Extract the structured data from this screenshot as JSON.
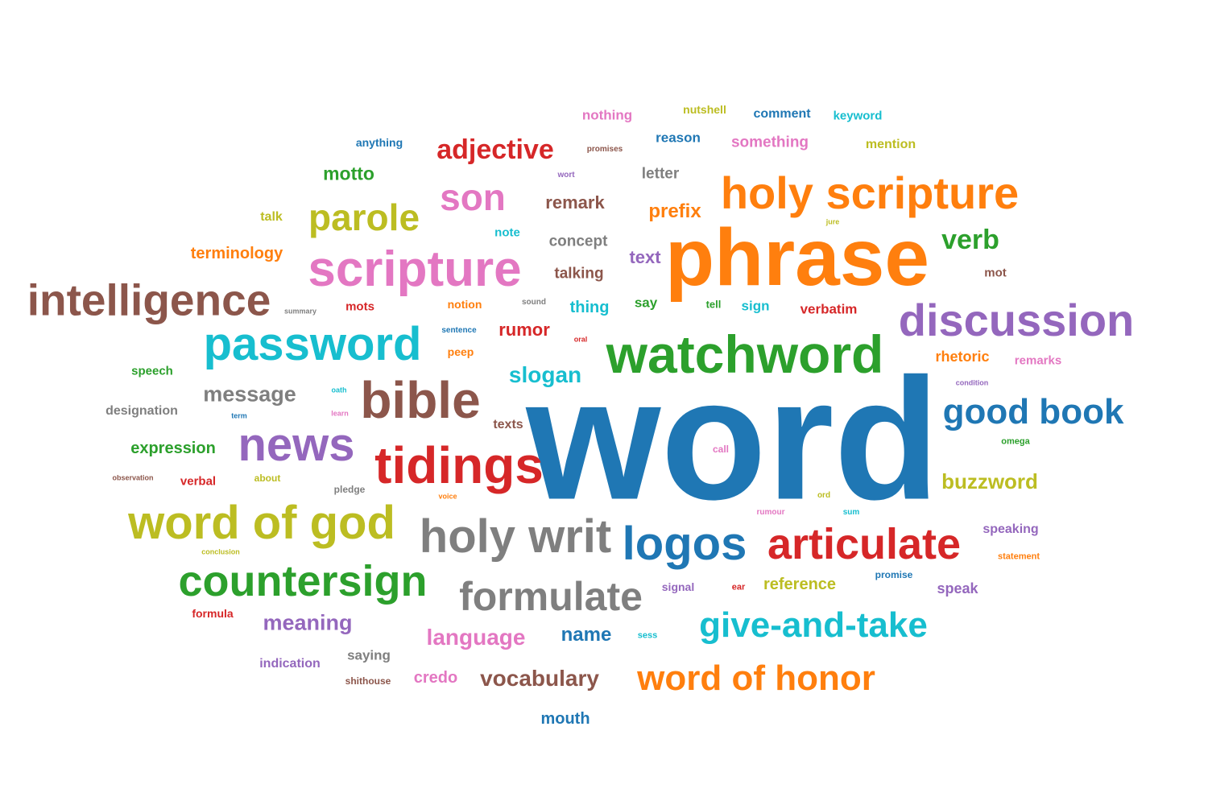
{
  "palette": {
    "blue": "#1f77b4",
    "orange": "#ff7f0e",
    "green": "#2ca02c",
    "red": "#d62728",
    "purple": "#9467bd",
    "brown": "#8c564b",
    "pink": "#e377c2",
    "gray": "#7f7f7f",
    "olive": "#bcbd22",
    "cyan": "#17becf"
  },
  "words": [
    {
      "text": "word",
      "color": "blue"
    },
    {
      "text": "phrase",
      "color": "orange"
    },
    {
      "text": "watchword",
      "color": "green"
    },
    {
      "text": "holy scripture",
      "color": "orange"
    },
    {
      "text": "scripture",
      "color": "pink"
    },
    {
      "text": "discussion",
      "color": "purple"
    },
    {
      "text": "intelligence",
      "color": "brown"
    },
    {
      "text": "password",
      "color": "cyan"
    },
    {
      "text": "bible",
      "color": "brown"
    },
    {
      "text": "tidings",
      "color": "red"
    },
    {
      "text": "news",
      "color": "purple"
    },
    {
      "text": "holy writ",
      "color": "gray"
    },
    {
      "text": "word of god",
      "color": "olive"
    },
    {
      "text": "articulate",
      "color": "red"
    },
    {
      "text": "logos",
      "color": "blue"
    },
    {
      "text": "countersign",
      "color": "green"
    },
    {
      "text": "formulate",
      "color": "gray"
    },
    {
      "text": "good book",
      "color": "blue"
    },
    {
      "text": "give-and-take",
      "color": "cyan"
    },
    {
      "text": "word of honor",
      "color": "orange"
    },
    {
      "text": "son",
      "color": "pink"
    },
    {
      "text": "parole",
      "color": "olive"
    },
    {
      "text": "adjective",
      "color": "red"
    },
    {
      "text": "verb",
      "color": "green"
    },
    {
      "text": "slogan",
      "color": "cyan"
    },
    {
      "text": "message",
      "color": "gray"
    },
    {
      "text": "buzzword",
      "color": "olive"
    },
    {
      "text": "vocabulary",
      "color": "brown"
    },
    {
      "text": "language",
      "color": "pink"
    },
    {
      "text": "meaning",
      "color": "purple"
    },
    {
      "text": "motto",
      "color": "green"
    },
    {
      "text": "remark",
      "color": "brown"
    },
    {
      "text": "prefix",
      "color": "orange"
    },
    {
      "text": "name",
      "color": "blue"
    },
    {
      "text": "text",
      "color": "purple"
    },
    {
      "text": "rumor",
      "color": "red"
    },
    {
      "text": "terminology",
      "color": "orange"
    },
    {
      "text": "expression",
      "color": "green"
    },
    {
      "text": "concept",
      "color": "gray"
    },
    {
      "text": "talking",
      "color": "brown"
    },
    {
      "text": "thing",
      "color": "cyan"
    },
    {
      "text": "letter",
      "color": "gray"
    },
    {
      "text": "reference",
      "color": "olive"
    },
    {
      "text": "rhetoric",
      "color": "orange"
    },
    {
      "text": "something",
      "color": "pink"
    },
    {
      "text": "credo",
      "color": "pink"
    },
    {
      "text": "mouth",
      "color": "blue"
    },
    {
      "text": "designation",
      "color": "gray"
    },
    {
      "text": "speaking",
      "color": "purple"
    },
    {
      "text": "indication",
      "color": "purple"
    },
    {
      "text": "speak",
      "color": "purple"
    },
    {
      "text": "saying",
      "color": "gray"
    },
    {
      "text": "verbatim",
      "color": "red"
    },
    {
      "text": "nothing",
      "color": "pink"
    },
    {
      "text": "remarks",
      "color": "pink"
    },
    {
      "text": "anything",
      "color": "blue"
    },
    {
      "text": "comment",
      "color": "blue"
    },
    {
      "text": "keyword",
      "color": "cyan"
    },
    {
      "text": "mention",
      "color": "olive"
    },
    {
      "text": "reason",
      "color": "blue"
    },
    {
      "text": "nutshell",
      "color": "olive"
    },
    {
      "text": "speech",
      "color": "green"
    },
    {
      "text": "talk",
      "color": "olive"
    },
    {
      "text": "note",
      "color": "cyan"
    },
    {
      "text": "texts",
      "color": "brown"
    },
    {
      "text": "sign",
      "color": "cyan"
    },
    {
      "text": "say",
      "color": "green"
    },
    {
      "text": "notion",
      "color": "orange"
    },
    {
      "text": "mots",
      "color": "red"
    },
    {
      "text": "mot",
      "color": "brown"
    },
    {
      "text": "peep",
      "color": "orange"
    },
    {
      "text": "verbal",
      "color": "red"
    },
    {
      "text": "formula",
      "color": "red"
    },
    {
      "text": "signal",
      "color": "purple"
    },
    {
      "text": "shithouse",
      "color": "brown"
    },
    {
      "text": "pledge",
      "color": "gray"
    },
    {
      "text": "about",
      "color": "olive"
    },
    {
      "text": "tell",
      "color": "green"
    },
    {
      "text": "statement",
      "color": "orange"
    },
    {
      "text": "promise",
      "color": "blue"
    },
    {
      "text": "omega",
      "color": "green"
    },
    {
      "text": "ear",
      "color": "red"
    },
    {
      "text": "sentence",
      "color": "blue"
    },
    {
      "text": "sound",
      "color": "gray"
    },
    {
      "text": "summary",
      "color": "gray"
    },
    {
      "text": "promises",
      "color": "brown"
    },
    {
      "text": "wort",
      "color": "purple"
    },
    {
      "text": "jure",
      "color": "olive"
    },
    {
      "text": "oral",
      "color": "red"
    },
    {
      "text": "oath",
      "color": "cyan"
    },
    {
      "text": "term",
      "color": "blue"
    },
    {
      "text": "learn",
      "color": "pink"
    },
    {
      "text": "condition",
      "color": "purple"
    },
    {
      "text": "call",
      "color": "pink"
    },
    {
      "text": "observation",
      "color": "brown"
    },
    {
      "text": "voice",
      "color": "orange"
    },
    {
      "text": "ord",
      "color": "olive"
    },
    {
      "text": "rumour",
      "color": "pink"
    },
    {
      "text": "sum",
      "color": "cyan"
    },
    {
      "text": "conclusion",
      "color": "olive"
    },
    {
      "text": "sess",
      "color": "cyan"
    }
  ]
}
